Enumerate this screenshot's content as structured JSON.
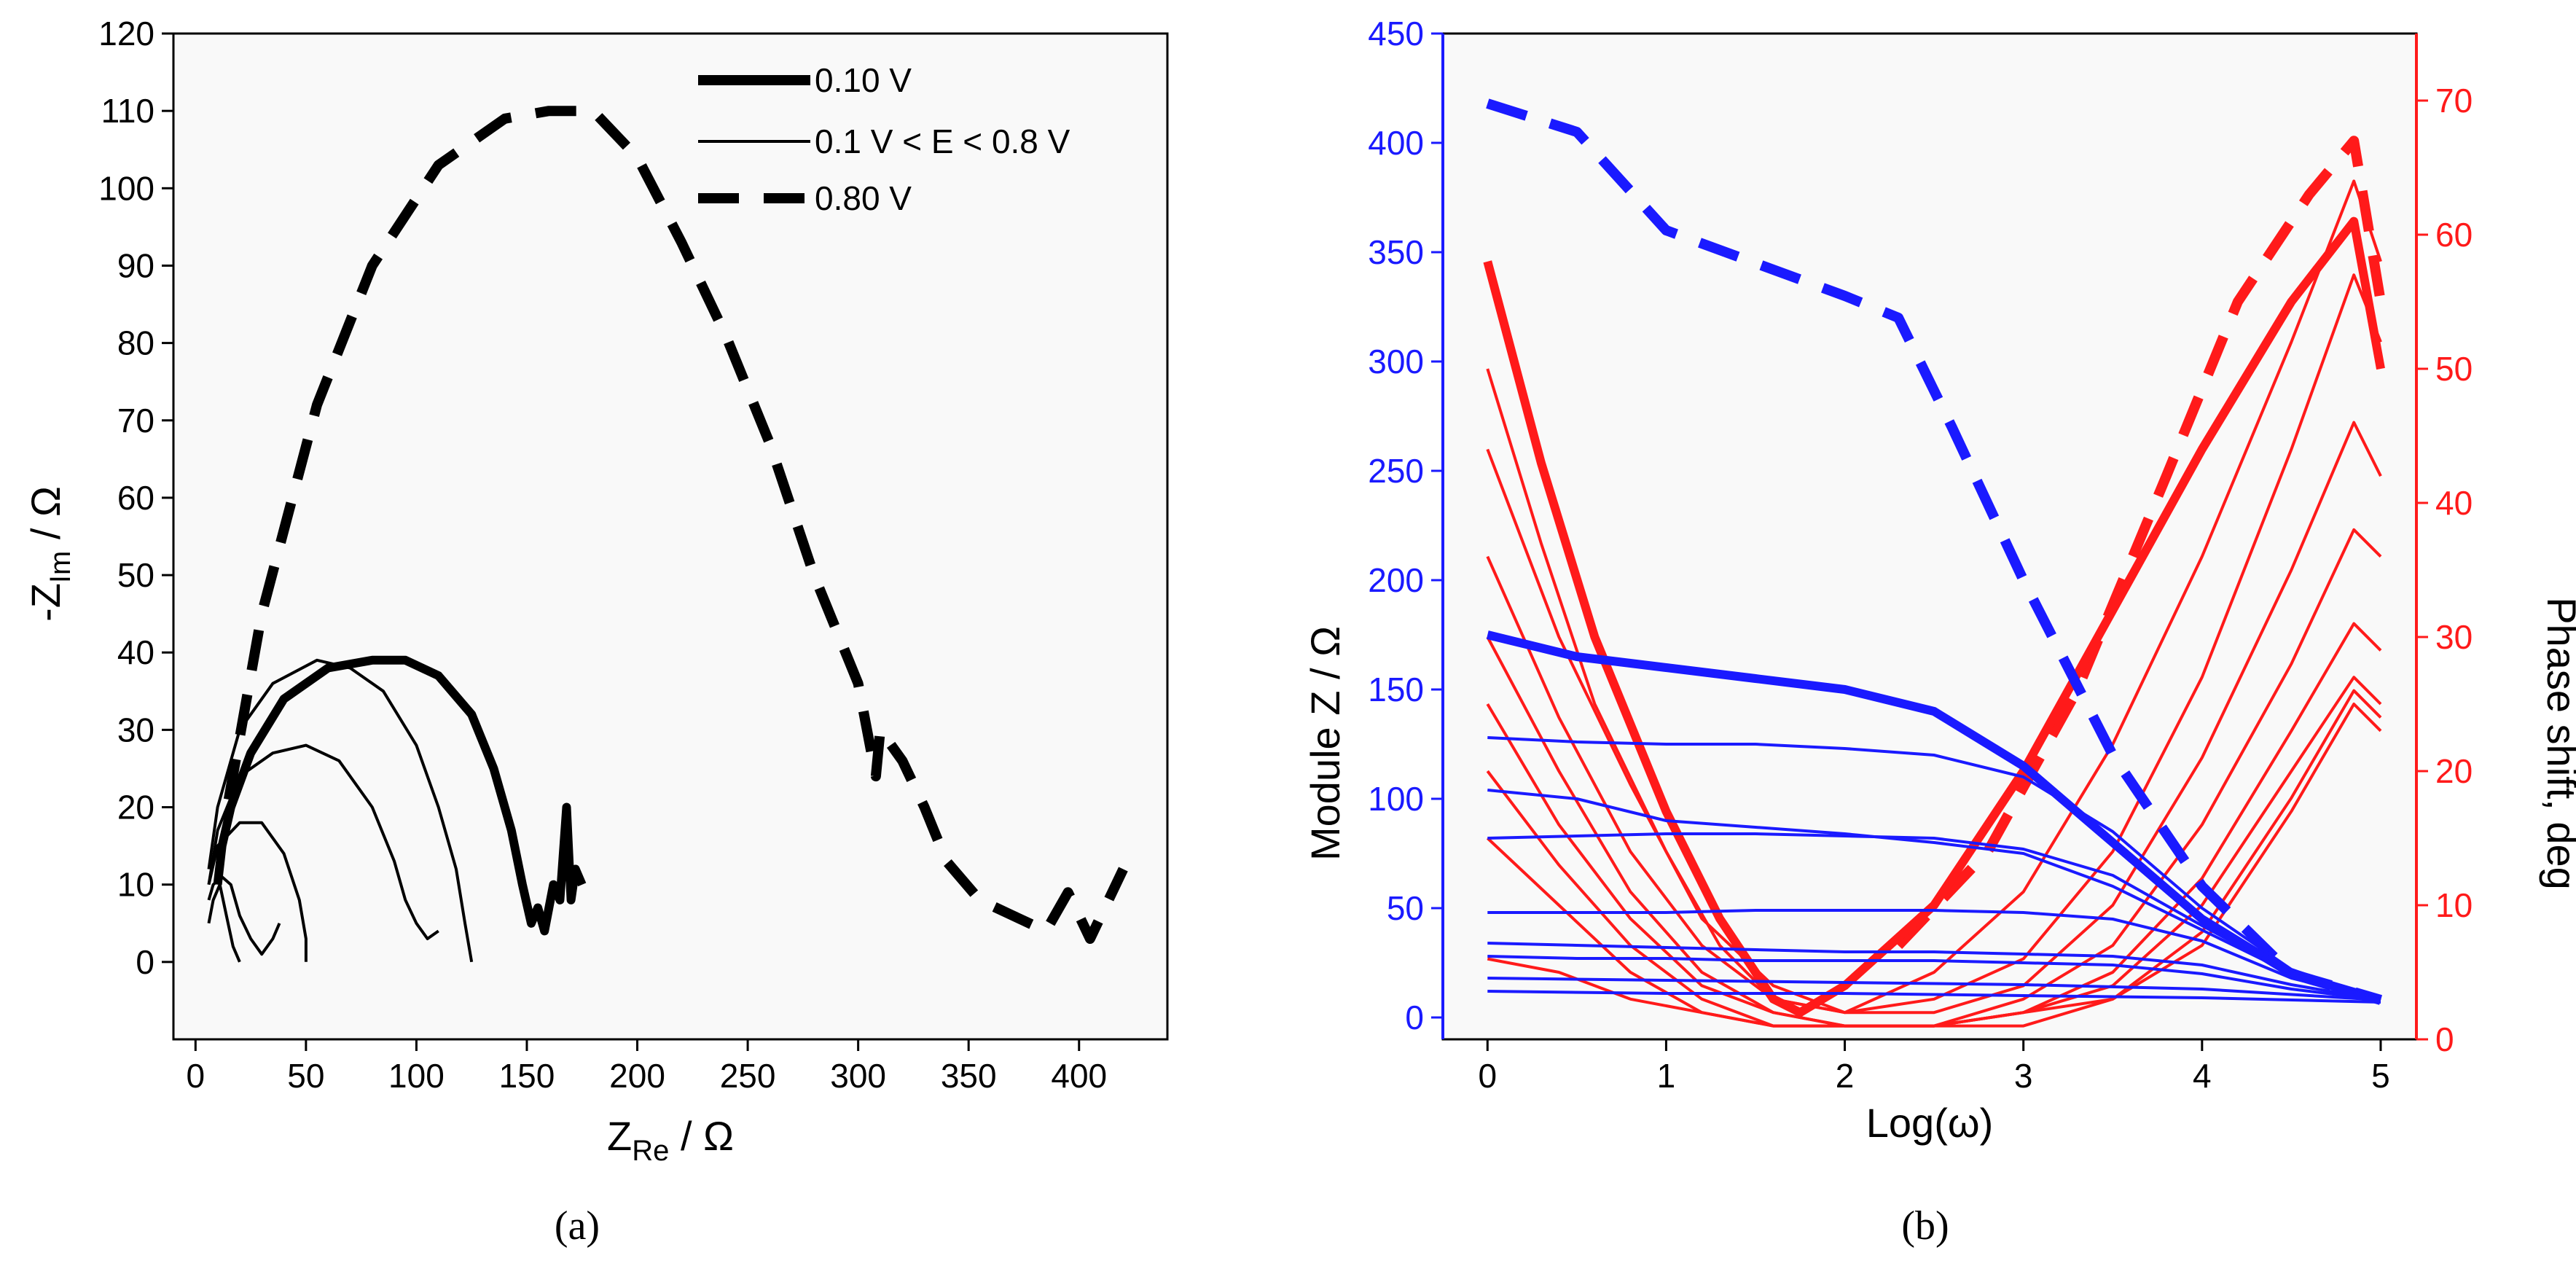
{
  "chart_data": [
    {
      "type": "line",
      "caption": "(a)",
      "xlabel_main": "Z",
      "xlabel_sub": "Re",
      "xlabel_unit": " / Ω",
      "ylabel_prefix": "-Z",
      "ylabel_sub": "Im",
      "ylabel_unit": " / Ω",
      "xlim": [
        -10,
        440
      ],
      "ylim": [
        -10,
        120
      ],
      "xticks": [
        0,
        50,
        100,
        150,
        200,
        250,
        300,
        350,
        400
      ],
      "yticks": [
        0,
        10,
        20,
        30,
        40,
        50,
        60,
        70,
        80,
        90,
        100,
        110,
        120
      ],
      "legend": [
        "0.10 V",
        "0.1 V < E < 0.8 V",
        "0.80 V"
      ],
      "series": [
        {
          "name": "0.10 V",
          "style": "thick",
          "x": [
            10,
            12,
            16,
            25,
            40,
            60,
            80,
            95,
            110,
            125,
            135,
            143,
            148,
            152,
            155,
            158,
            162,
            165,
            168,
            170,
            172,
            175
          ],
          "y": [
            10,
            15,
            20,
            27,
            34,
            38,
            39,
            39,
            37,
            32,
            25,
            17,
            10,
            5,
            7,
            4,
            10,
            8,
            20,
            8,
            12,
            10
          ]
        },
        {
          "name": "0.1 V < E < 0.8 V",
          "style": "thin",
          "x": [
            6,
            10,
            20,
            35,
            55,
            70,
            85,
            100,
            110,
            118,
            122,
            125
          ],
          "y": [
            12,
            20,
            30,
            36,
            39,
            38,
            35,
            28,
            20,
            12,
            5,
            0
          ]
        },
        {
          "name": "0.1 V < E < 0.8 V",
          "style": "thin",
          "x": [
            6,
            10,
            20,
            35,
            50,
            65,
            80,
            90,
            95,
            100,
            105,
            110
          ],
          "y": [
            10,
            17,
            24,
            27,
            28,
            26,
            20,
            13,
            8,
            5,
            3,
            4
          ]
        },
        {
          "name": "0.1 V < E < 0.8 V",
          "style": "thin",
          "x": [
            6,
            10,
            20,
            30,
            40,
            47,
            50,
            50
          ],
          "y": [
            10,
            15,
            18,
            18,
            14,
            8,
            3,
            0
          ]
        },
        {
          "name": "0.1 V < E < 0.8 V",
          "style": "thin",
          "x": [
            6,
            8,
            12,
            16,
            20,
            25,
            30,
            35,
            38
          ],
          "y": [
            8,
            10,
            11,
            10,
            6,
            3,
            1,
            3,
            5
          ]
        },
        {
          "name": "0.1 V < E < 0.8 V",
          "style": "thin",
          "x": [
            6,
            8,
            11,
            14,
            17,
            20
          ],
          "y": [
            5,
            8,
            10,
            6,
            2,
            0
          ]
        },
        {
          "name": "0.80 V",
          "style": "dashed",
          "x": [
            15,
            30,
            55,
            80,
            110,
            140,
            160,
            180,
            200,
            220,
            240,
            260,
            280,
            300,
            308,
            310,
            320,
            330,
            340,
            355,
            370,
            385,
            395,
            405,
            420
          ],
          "y": [
            21,
            45,
            72,
            90,
            103,
            109,
            110,
            110,
            104,
            93,
            81,
            67,
            50,
            36,
            24,
            30,
            26,
            20,
            13,
            8,
            6,
            4,
            9,
            3,
            12
          ]
        }
      ]
    },
    {
      "type": "line",
      "caption": "(b)",
      "xlabel": "Log(ω)",
      "ylabel_left": "Module Z / Ω",
      "ylabel_right": "Phase shift, deg",
      "xlim": [
        -0.25,
        5.2
      ],
      "ylim_left": [
        -10,
        450
      ],
      "ylim_right": [
        0,
        75
      ],
      "xticks": [
        0,
        1,
        2,
        3,
        4,
        5
      ],
      "yticks_left": [
        0,
        50,
        100,
        150,
        200,
        250,
        300,
        350,
        400,
        450
      ],
      "yticks_right": [
        0,
        10,
        20,
        30,
        40,
        50,
        60,
        70
      ],
      "colors": {
        "module": "#1a1aff",
        "phase": "#ff1a1a"
      },
      "module_series": [
        {
          "style": "dashed",
          "x": [
            0,
            0.5,
            1,
            1.5,
            2,
            2.3,
            2.6,
            3,
            3.5,
            4,
            4.5,
            5
          ],
          "y": [
            418,
            405,
            360,
            345,
            330,
            320,
            270,
            200,
            120,
            60,
            20,
            8
          ]
        },
        {
          "style": "thick",
          "x": [
            0,
            0.5,
            1,
            1.5,
            2,
            2.5,
            3,
            3.5,
            4,
            4.5,
            5
          ],
          "y": [
            175,
            165,
            160,
            155,
            150,
            140,
            115,
            80,
            45,
            20,
            8
          ]
        },
        {
          "style": "thin",
          "x": [
            0,
            0.5,
            1,
            1.5,
            2,
            2.5,
            3,
            3.5,
            4,
            4.5,
            5
          ],
          "y": [
            128,
            126,
            125,
            125,
            123,
            120,
            110,
            85,
            50,
            22,
            8
          ]
        },
        {
          "style": "thin",
          "x": [
            0,
            0.5,
            1,
            1.5,
            2,
            2.5,
            3,
            3.5,
            4,
            4.5,
            5
          ],
          "y": [
            104,
            100,
            90,
            87,
            84,
            80,
            75,
            60,
            40,
            20,
            8
          ]
        },
        {
          "style": "thin",
          "x": [
            0,
            0.5,
            1,
            1.5,
            2,
            2.5,
            3,
            3.5,
            4,
            4.5,
            5
          ],
          "y": [
            82,
            83,
            84,
            84,
            83,
            82,
            77,
            65,
            42,
            20,
            8
          ]
        },
        {
          "style": "thin",
          "x": [
            0,
            0.5,
            1,
            1.5,
            2,
            2.5,
            3,
            3.5,
            4,
            4.5,
            5
          ],
          "y": [
            48,
            48,
            48,
            49,
            49,
            49,
            48,
            45,
            35,
            18,
            8
          ]
        },
        {
          "style": "thin",
          "x": [
            0,
            0.5,
            1,
            1.5,
            2,
            2.5,
            3,
            3.5,
            4,
            4.5,
            5
          ],
          "y": [
            34,
            33,
            32,
            31,
            30,
            30,
            29,
            28,
            24,
            15,
            8
          ]
        },
        {
          "style": "thin",
          "x": [
            0,
            0.5,
            1,
            1.5,
            2,
            2.5,
            3,
            3.5,
            4,
            4.5,
            5
          ],
          "y": [
            28,
            27,
            27,
            26,
            26,
            26,
            25,
            24,
            20,
            13,
            8
          ]
        },
        {
          "style": "thin",
          "x": [
            0,
            1,
            2,
            3,
            4,
            5
          ],
          "y": [
            18,
            17,
            16,
            15,
            13,
            8
          ]
        },
        {
          "style": "thin",
          "x": [
            0,
            1,
            2,
            3,
            4,
            5
          ],
          "y": [
            12,
            11,
            11,
            10,
            9,
            7
          ]
        }
      ],
      "phase_series": [
        {
          "style": "dashed",
          "x": [
            2.3,
            2.8,
            3.3,
            3.8,
            4.2,
            4.6,
            4.85,
            5.0
          ],
          "y": [
            7,
            14,
            26,
            42,
            55,
            63,
            67,
            55
          ]
        },
        {
          "style": "thick",
          "x": [
            0,
            0.3,
            0.6,
            1,
            1.3,
            1.6,
            1.75,
            2,
            2.5,
            3,
            3.5,
            4,
            4.5,
            4.85,
            5.0
          ],
          "y": [
            58,
            43,
            30,
            17,
            9,
            3,
            2,
            4,
            10,
            20,
            32,
            44,
            55,
            61,
            50
          ]
        },
        {
          "style": "thin",
          "x": [
            0,
            0.3,
            0.6,
            1,
            1.3,
            1.6,
            2,
            2.5,
            3,
            3.5,
            4,
            4.5,
            4.85,
            5.0
          ],
          "y": [
            50,
            37,
            25,
            14,
            7,
            3,
            2,
            5,
            11,
            22,
            36,
            52,
            64,
            58
          ]
        },
        {
          "style": "thin",
          "x": [
            0,
            0.4,
            0.8,
            1.2,
            1.6,
            2,
            2.5,
            3,
            3.5,
            4,
            4.5,
            4.85,
            5.0
          ],
          "y": [
            44,
            30,
            19,
            9,
            4,
            2,
            3,
            6,
            14,
            27,
            44,
            57,
            52
          ]
        },
        {
          "style": "thin",
          "x": [
            0,
            0.4,
            0.8,
            1.2,
            1.6,
            2,
            2.5,
            3,
            3.5,
            4,
            4.5,
            4.85,
            5.0
          ],
          "y": [
            36,
            24,
            14,
            7,
            3,
            2,
            2,
            4,
            10,
            21,
            35,
            46,
            42
          ]
        },
        {
          "style": "thin",
          "x": [
            0,
            0.4,
            0.8,
            1.2,
            1.6,
            2,
            2.5,
            3,
            3.5,
            4,
            4.5,
            4.85,
            5.0
          ],
          "y": [
            30,
            20,
            11,
            5,
            2,
            1,
            1,
            3,
            7,
            16,
            28,
            38,
            36
          ]
        },
        {
          "style": "thin",
          "x": [
            0,
            0.4,
            0.8,
            1.2,
            1.6,
            2,
            2.5,
            3,
            3.5,
            4,
            4.5,
            4.85,
            5.0
          ],
          "y": [
            25,
            16,
            9,
            4,
            2,
            1,
            1,
            2,
            5,
            12,
            23,
            31,
            29
          ]
        },
        {
          "style": "thin",
          "x": [
            0,
            0.4,
            0.8,
            1.2,
            1.6,
            2,
            2.5,
            3,
            3.5,
            4,
            4.5,
            4.85,
            5.0
          ],
          "y": [
            20,
            13,
            7,
            3,
            1,
            1,
            1,
            2,
            4,
            10,
            20,
            27,
            25
          ]
        },
        {
          "style": "thin",
          "x": [
            0,
            0.4,
            0.8,
            1.2,
            1.6,
            2,
            2.5,
            3,
            3.5,
            4,
            4.5,
            4.85,
            5.0
          ],
          "y": [
            15,
            10,
            5,
            2,
            1,
            1,
            1,
            2,
            3,
            8,
            18,
            26,
            24
          ]
        },
        {
          "style": "thin",
          "x": [
            0,
            0.4,
            0.8,
            1.2,
            1.6,
            2,
            2.5,
            3,
            3.5,
            4,
            4.5,
            4.85,
            5.0
          ],
          "y": [
            6,
            5,
            3,
            2,
            1,
            1,
            1,
            1,
            3,
            7,
            17,
            25,
            23
          ]
        }
      ]
    }
  ]
}
